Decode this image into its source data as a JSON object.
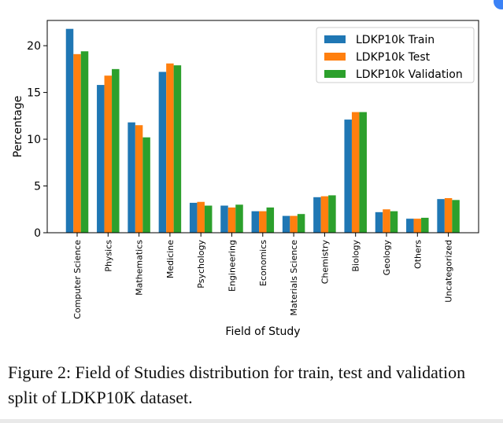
{
  "chart_data": {
    "type": "bar",
    "title": "",
    "xlabel": "Field of Study",
    "ylabel": "Percentage",
    "ylim": [
      0,
      22.7
    ],
    "yticks": [
      0,
      5,
      10,
      15,
      20
    ],
    "categories": [
      "Computer Science",
      "Physics",
      "Mathematics",
      "Medicine",
      "Psychology",
      "Engineering",
      "Economics",
      "Materials Science",
      "Chemistry",
      "Biology",
      "Geology",
      "Others",
      "Uncategorized"
    ],
    "series": [
      {
        "name": "LDKP10k Train",
        "color": "#1f77b4",
        "values": [
          21.8,
          15.8,
          11.8,
          17.2,
          3.2,
          2.9,
          2.3,
          1.8,
          3.8,
          12.1,
          2.2,
          1.5,
          3.6
        ]
      },
      {
        "name": "LDKP10k Test",
        "color": "#ff7f0e",
        "values": [
          19.1,
          16.8,
          11.5,
          18.1,
          3.3,
          2.7,
          2.3,
          1.8,
          3.9,
          12.9,
          2.5,
          1.5,
          3.7
        ]
      },
      {
        "name": "LDKP10k Validation",
        "color": "#2ca02c",
        "values": [
          19.4,
          17.5,
          10.2,
          17.9,
          2.9,
          3.0,
          2.7,
          2.0,
          4.0,
          12.9,
          2.3,
          1.6,
          3.5
        ]
      }
    ],
    "legend": "top-right",
    "grid": false
  },
  "caption": "Figure 2: Field of Studies distribution for train, test and validation split of LDKP10K dataset."
}
